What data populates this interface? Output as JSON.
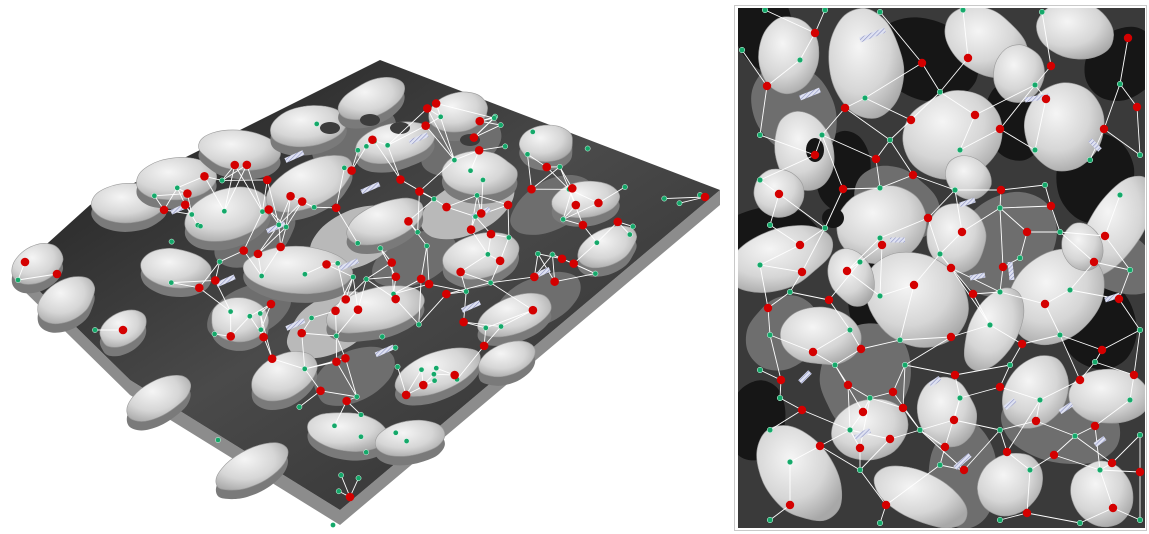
{
  "figure": {
    "panels": [
      {
        "id": "perspective-view",
        "view": "3d"
      },
      {
        "id": "plan-view",
        "view": "top"
      }
    ],
    "colors": {
      "background": "#ffffff",
      "level_black": "#161616",
      "level_dark": "#3c3c3c",
      "level_mid": "#6e6e6e",
      "level_light": "#b9b9b9",
      "blob_light": "#d2d2d2",
      "blob_highlight": "#f2f2f2",
      "node_red": "#d40000",
      "node_green": "#15a86a",
      "edge": "#ffffff",
      "bridge": "#a9b0d8"
    },
    "legend": {
      "red_node": "region-node",
      "green_node": "junction-node",
      "white_line": "graph-edge",
      "hatched_strip": "bridge-connector"
    }
  }
}
